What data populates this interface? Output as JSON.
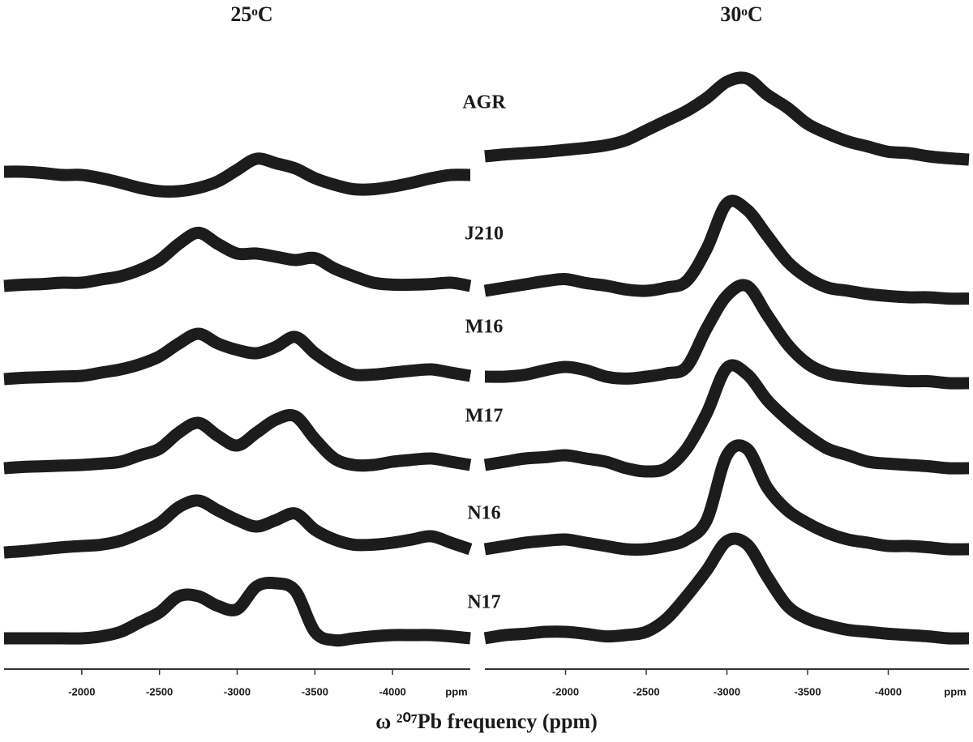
{
  "xlabel": "ω ²⁰⁷Pb frequency (ppm)",
  "chart_data": [
    {
      "type": "line",
      "title": "25ᵒC",
      "x_unit": "ppm",
      "color": "#1c1c1c",
      "xlim": [
        -1500,
        -4500
      ],
      "xticks": [
        -2000,
        -2500,
        -3000,
        -3500,
        -4000
      ],
      "x": [
        -1500,
        -1625,
        -1750,
        -1875,
        -2000,
        -2125,
        -2250,
        -2375,
        -2500,
        -2625,
        -2750,
        -2875,
        -3000,
        -3125,
        -3250,
        -3375,
        -3500,
        -3625,
        -3750,
        -3875,
        -4000,
        -4125,
        -4250,
        -4375,
        -4500
      ],
      "series": [
        {
          "name": "AGR",
          "values": [
            35,
            35,
            33,
            30,
            30,
            25,
            18,
            10,
            5,
            5,
            10,
            20,
            38,
            55,
            48,
            40,
            25,
            15,
            8,
            8,
            12,
            18,
            25,
            30,
            30
          ]
        },
        {
          "name": "J210",
          "values": [
            15,
            17,
            18,
            20,
            20,
            25,
            30,
            40,
            55,
            80,
            97,
            80,
            65,
            65,
            60,
            55,
            58,
            42,
            30,
            20,
            17,
            17,
            18,
            20,
            15
          ]
        },
        {
          "name": "M16",
          "values": [
            15,
            17,
            18,
            19,
            20,
            25,
            30,
            38,
            50,
            70,
            85,
            70,
            60,
            55,
            65,
            80,
            55,
            35,
            22,
            22,
            25,
            28,
            30,
            25,
            20
          ]
        },
        {
          "name": "M17",
          "values": [
            15,
            17,
            18,
            19,
            20,
            22,
            25,
            35,
            45,
            70,
            85,
            65,
            50,
            70,
            90,
            95,
            60,
            30,
            20,
            20,
            25,
            28,
            30,
            25,
            20
          ]
        },
        {
          "name": "N16",
          "values": [
            10,
            12,
            15,
            18,
            20,
            22,
            28,
            40,
            55,
            80,
            90,
            75,
            60,
            50,
            60,
            70,
            45,
            30,
            22,
            22,
            25,
            30,
            35,
            25,
            15
          ]
        },
        {
          "name": "N17",
          "values": [
            15,
            15,
            15,
            15,
            15,
            18,
            25,
            40,
            55,
            80,
            80,
            65,
            60,
            95,
            100,
            88,
            25,
            12,
            15,
            18,
            20,
            20,
            20,
            18,
            15
          ]
        }
      ]
    },
    {
      "type": "line",
      "title": "30ᵒC",
      "x_unit": "ppm",
      "color": "#1c1c1c",
      "xlim": [
        -1500,
        -4500
      ],
      "xticks": [
        -2000,
        -2500,
        -3000,
        -3500,
        -4000
      ],
      "x": [
        -1500,
        -1625,
        -1750,
        -1875,
        -2000,
        -2125,
        -2250,
        -2375,
        -2500,
        -2625,
        -2750,
        -2875,
        -3000,
        -3125,
        -3250,
        -3375,
        -3500,
        -3625,
        -3750,
        -3875,
        -4000,
        -4125,
        -4250,
        -4375,
        -4500
      ],
      "series": [
        {
          "values": [
            15,
            18,
            20,
            22,
            25,
            28,
            32,
            40,
            55,
            70,
            85,
            105,
            130,
            135,
            110,
            90,
            65,
            50,
            38,
            30,
            22,
            20,
            15,
            12,
            10
          ]
        },
        {
          "values": [
            20,
            25,
            30,
            35,
            38,
            32,
            28,
            22,
            20,
            25,
            35,
            85,
            155,
            145,
            105,
            65,
            40,
            25,
            20,
            15,
            12,
            10,
            10,
            8,
            8
          ]
        },
        {
          "values": [
            25,
            25,
            28,
            35,
            40,
            35,
            25,
            22,
            25,
            30,
            40,
            100,
            150,
            165,
            120,
            75,
            45,
            30,
            25,
            22,
            20,
            18,
            18,
            15,
            15
          ]
        },
        {
          "values": [
            20,
            25,
            30,
            32,
            35,
            30,
            25,
            15,
            10,
            15,
            45,
            100,
            170,
            160,
            120,
            90,
            65,
            45,
            35,
            25,
            22,
            20,
            18,
            15,
            15
          ]
        },
        {
          "values": [
            15,
            20,
            25,
            28,
            30,
            25,
            20,
            15,
            15,
            20,
            30,
            60,
            160,
            170,
            110,
            75,
            55,
            40,
            30,
            25,
            20,
            20,
            18,
            15,
            15
          ]
        },
        {
          "values": [
            15,
            20,
            22,
            25,
            25,
            22,
            18,
            20,
            25,
            45,
            80,
            120,
            165,
            160,
            110,
            65,
            45,
            35,
            28,
            25,
            22,
            20,
            18,
            15,
            15
          ]
        }
      ]
    }
  ]
}
